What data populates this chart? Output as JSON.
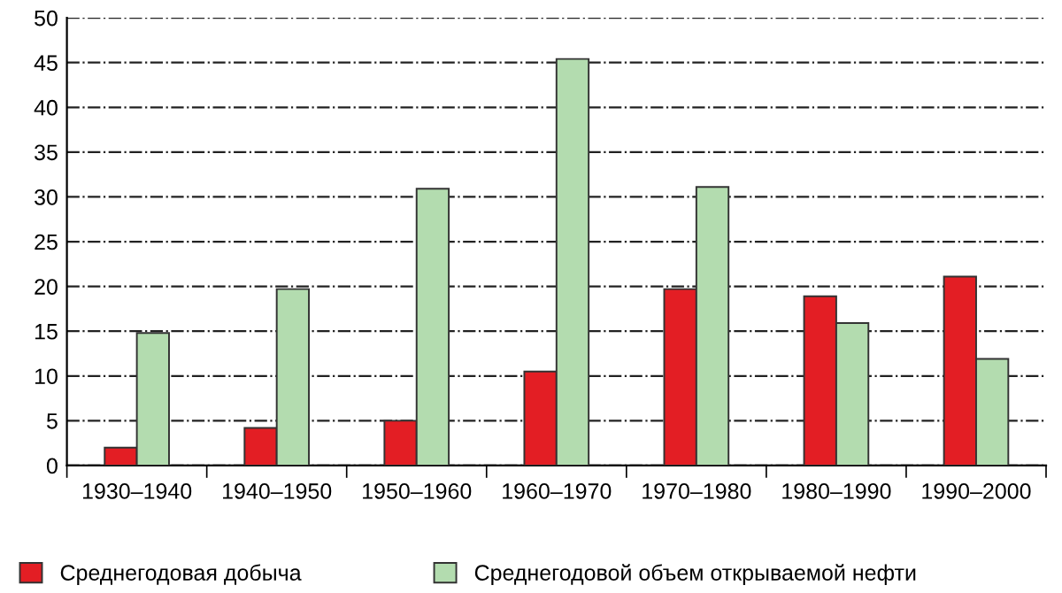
{
  "chart_data": {
    "type": "bar",
    "categories": [
      "1930–1940",
      "1940–1950",
      "1950–1960",
      "1960–1970",
      "1970–1980",
      "1980–1990",
      "1990–2000"
    ],
    "series": [
      {
        "name": "Среднегодовая добыча",
        "color": "#e31e24",
        "values": [
          2,
          4.2,
          5,
          10.5,
          19.7,
          18.9,
          21.1
        ]
      },
      {
        "name": "Среднегодовой объем открываемой нефти",
        "color": "#b3dcaf",
        "values": [
          14.8,
          19.7,
          30.9,
          45.4,
          31.1,
          15.9,
          11.9
        ]
      }
    ],
    "ylim": [
      0,
      50
    ],
    "yticks": [
      0,
      5,
      10,
      15,
      20,
      25,
      30,
      35,
      40,
      45,
      50
    ],
    "grid": "y",
    "legend": "bottom"
  }
}
